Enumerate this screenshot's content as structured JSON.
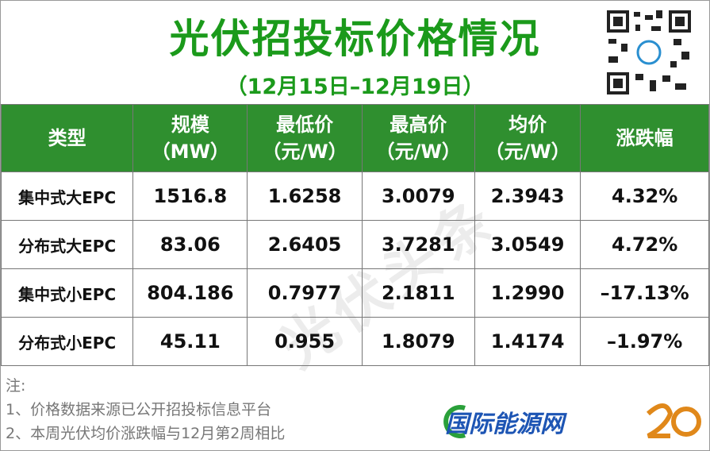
{
  "header": {
    "title": "光伏招投标价格情况",
    "subtitle": "（12月15日–12月19日）"
  },
  "table": {
    "columns": [
      [
        "类型"
      ],
      [
        "规模",
        "（MW）"
      ],
      [
        "最低价",
        "（元/W）"
      ],
      [
        "最高价",
        "（元/W）"
      ],
      [
        "均价",
        "（元/W）"
      ],
      [
        "涨跌幅"
      ]
    ],
    "rows": [
      [
        "集中式大EPC",
        "1516.8",
        "1.6258",
        "3.0079",
        "2.3943",
        "4.32%"
      ],
      [
        "分布式大EPC",
        "83.06",
        "2.6405",
        "3.7281",
        "3.0549",
        "4.72%"
      ],
      [
        "集中式小EPC",
        "804.186",
        "0.7977",
        "2.1811",
        "1.2990",
        "–17.13%"
      ],
      [
        "分布式小EPC",
        "45.11",
        "0.955",
        "1.8079",
        "1.4174",
        "–1.97%"
      ]
    ]
  },
  "notes": {
    "label": "注:",
    "items": [
      "1、价格数据来源已公开招投标信息平台",
      "2、本周光伏均价涨跌幅与12月第2周相比"
    ]
  },
  "watermark": "光伏头条",
  "logo": "国际能源网"
}
